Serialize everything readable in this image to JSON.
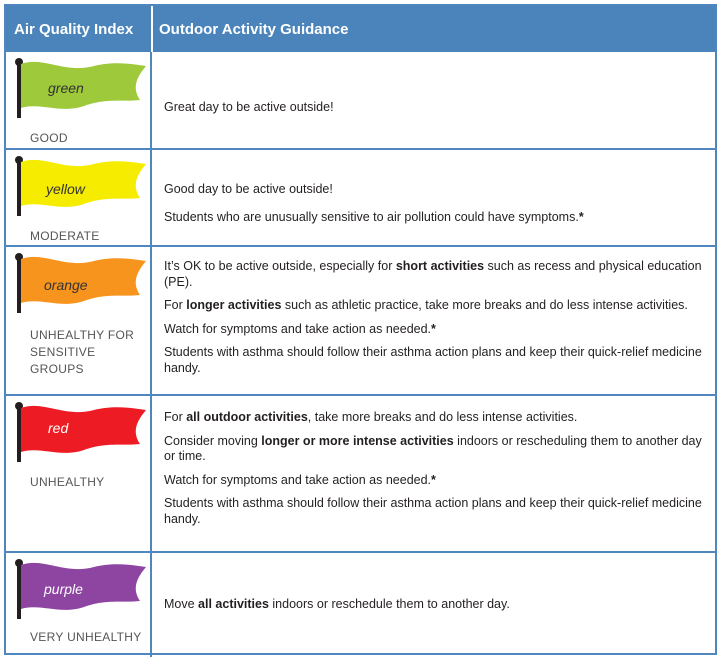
{
  "header": {
    "col1": "Air Quality Index",
    "col2": "Outdoor Activity Guidance"
  },
  "rows": [
    {
      "flag_label": "green",
      "flag_color": "#9dc93b",
      "level": "GOOD",
      "lines": [
        [
          {
            "t": "Great day to be active outside!",
            "b": false
          }
        ]
      ]
    },
    {
      "flag_label": "yellow",
      "flag_color": "#f5ec00",
      "level": "MODERATE",
      "lines": [
        [
          {
            "t": "Good day to be active outside!",
            "b": false
          }
        ],
        [
          {
            "t": "Students who are unusually sensitive to air pollution could have symptoms.",
            "b": false
          },
          {
            "t": "*",
            "b": true
          }
        ]
      ]
    },
    {
      "flag_label": "orange",
      "flag_color": "#f7941d",
      "level": "UNHEALTHY FOR SENSITIVE GROUPS",
      "level_lines": [
        "UNHEALTHY FOR",
        "SENSITIVE GROUPS"
      ],
      "lines": [
        [
          {
            "t": "It’s OK to be active outside, especially for ",
            "b": false
          },
          {
            "t": "short activities",
            "b": true
          },
          {
            "t": " such as recess and physical education (PE).",
            "b": false
          }
        ],
        [
          {
            "t": "For ",
            "b": false
          },
          {
            "t": "longer activities",
            "b": true
          },
          {
            "t": " such as athletic practice, take more breaks and do less intense activities.",
            "b": false
          }
        ],
        [
          {
            "t": "Watch for symptoms and take action as needed.",
            "b": false
          },
          {
            "t": "*",
            "b": true
          }
        ],
        [
          {
            "t": "Students with asthma should follow their asthma action plans and keep their quick-relief medicine handy.",
            "b": false
          }
        ]
      ]
    },
    {
      "flag_label": "red",
      "flag_color": "#ed1c24",
      "level": "UNHEALTHY",
      "lines": [
        [
          {
            "t": "For ",
            "b": false
          },
          {
            "t": "all outdoor activities",
            "b": true
          },
          {
            "t": ", take more breaks and do less intense activities.",
            "b": false
          }
        ],
        [
          {
            "t": "Consider moving ",
            "b": false
          },
          {
            "t": "longer or more intense activities",
            "b": true
          },
          {
            "t": " indoors or rescheduling them to another day or time.",
            "b": false
          }
        ],
        [
          {
            "t": "Watch for symptoms and take action as needed.",
            "b": false
          },
          {
            "t": "*",
            "b": true
          }
        ],
        [
          {
            "t": "Students with asthma should follow their asthma action plans and keep their quick-relief medicine handy.",
            "b": false
          }
        ]
      ]
    },
    {
      "flag_label": "purple",
      "flag_color": "#8e44a1",
      "level": "VERY UNHEALTHY",
      "lines": [
        [
          {
            "t": "Move ",
            "b": false
          },
          {
            "t": "all activities",
            "b": true
          },
          {
            "t": " indoors or reschedule them to another day.",
            "b": false
          }
        ]
      ]
    }
  ]
}
